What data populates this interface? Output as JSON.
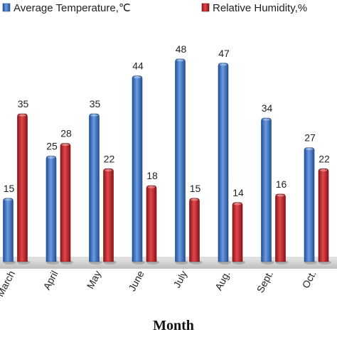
{
  "chart_data": {
    "type": "bar",
    "categories": [
      "March",
      "April",
      "May",
      "June",
      "July",
      "Aug.",
      "Sept.",
      "Oct."
    ],
    "series": [
      {
        "name": "Average Temperature,℃",
        "values": [
          15,
          25,
          35,
          44,
          48,
          47,
          34,
          27
        ],
        "color": "#3b6fc2"
      },
      {
        "name": "Relative Humidity,%",
        "values": [
          35,
          28,
          22,
          18,
          15,
          14,
          16,
          22
        ],
        "color": "#c0262a"
      }
    ],
    "xlabel": "Month",
    "ylabel": "",
    "ylim": [
      0,
      52
    ],
    "legend": "top",
    "grid": false
  }
}
